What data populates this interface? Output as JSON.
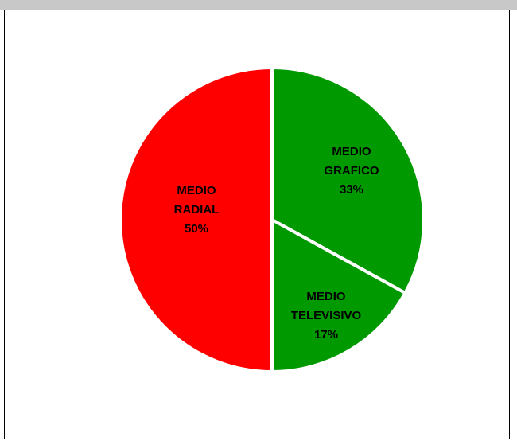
{
  "chart_data": {
    "type": "pie",
    "title": "",
    "slices": [
      {
        "label_lines": [
          "MEDIO",
          "GRAFICO"
        ],
        "value": 33,
        "percent_label": "33%",
        "color": "#009900"
      },
      {
        "label_lines": [
          "MEDIO",
          "TELEVISIVO"
        ],
        "value": 17,
        "percent_label": "17%",
        "color": "#009900"
      },
      {
        "label_lines": [
          "MEDIO",
          "RADIAL"
        ],
        "value": 50,
        "percent_label": "50%",
        "color": "#ff0000"
      }
    ],
    "start_angle_deg": 0,
    "direction": "clockwise",
    "separator_color": "#ffffff",
    "legend": "none"
  }
}
